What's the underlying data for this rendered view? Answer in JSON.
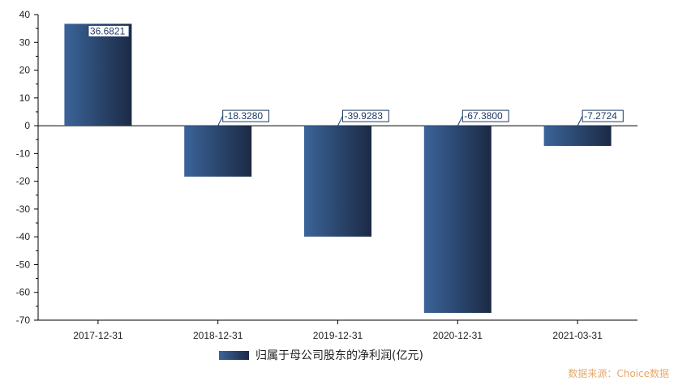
{
  "chart_data": {
    "type": "bar",
    "categories": [
      "2017-12-31",
      "2018-12-31",
      "2019-12-31",
      "2020-12-31",
      "2021-03-31"
    ],
    "series": [
      {
        "name": "归属于母公司股东的净利润(亿元)",
        "values": [
          36.6821,
          -18.328,
          -39.9283,
          -67.38,
          -7.2724
        ]
      }
    ],
    "data_labels": [
      "36.6821",
      "-18.3280",
      "-39.9283",
      "-67.3800",
      "-7.2724"
    ],
    "ylim": [
      -70,
      40
    ],
    "yticks": [
      40,
      30,
      20,
      10,
      0,
      -10,
      -20,
      -30,
      -40,
      -50,
      -60,
      -70
    ],
    "grid": false,
    "legend_position": "bottom",
    "colors": {
      "bar_light": "#3b6499",
      "bar_dark": "#1b2a45",
      "label": "#1f3b66"
    }
  },
  "legend": {
    "label": "归属于母公司股东的净利润(亿元)"
  },
  "watermark": "数据来源：Choice数据"
}
